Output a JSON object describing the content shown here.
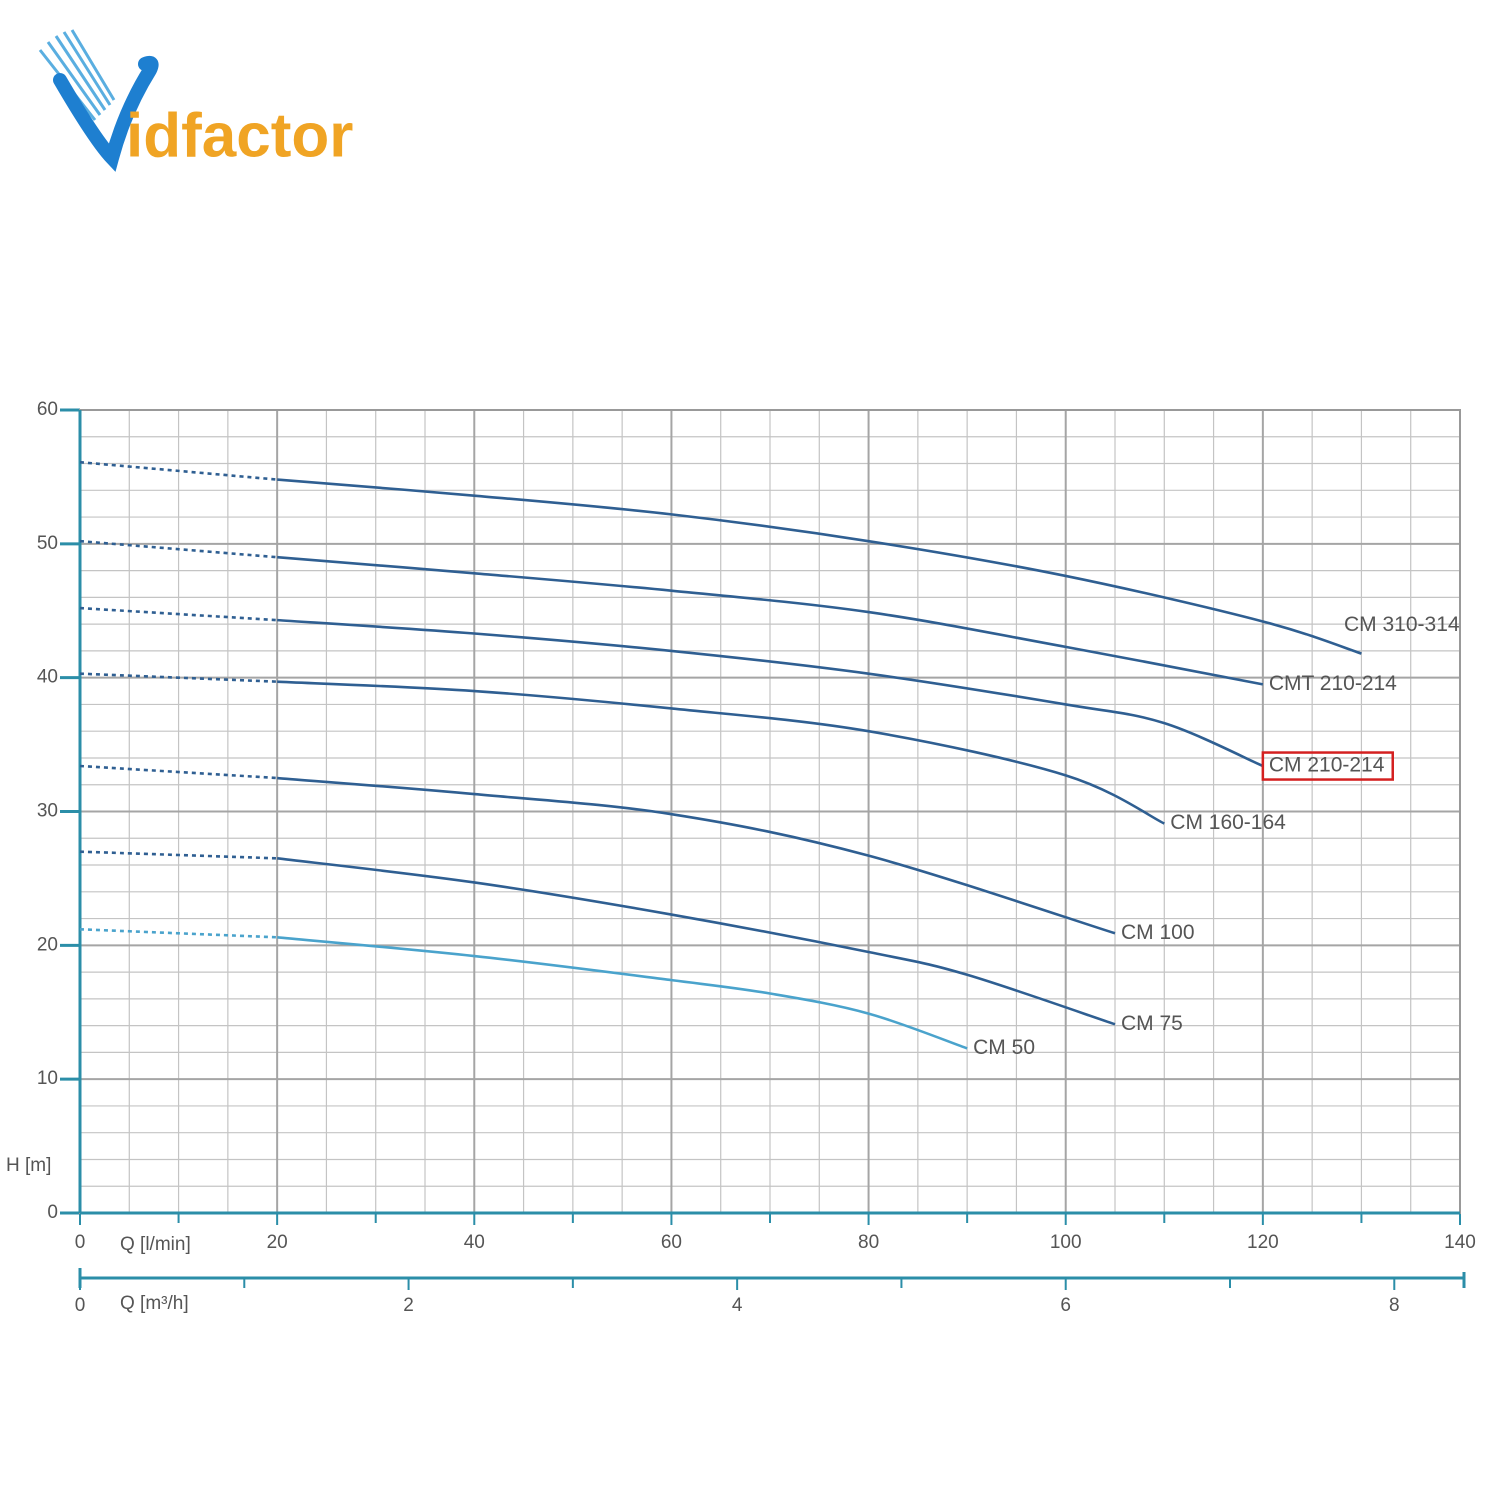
{
  "logo": {
    "initial": "V",
    "rest": "idfactor"
  },
  "chart_data": {
    "type": "line",
    "xlabel": "Q [l/min]",
    "x2label": "Q [m³/h]",
    "ylabel": "H [m]",
    "xlim": [
      0,
      140
    ],
    "xticks": [
      0,
      20,
      40,
      60,
      80,
      100,
      120,
      140
    ],
    "xminor_ticks": [
      10,
      30,
      50,
      70,
      90,
      110,
      130
    ],
    "x2lim": [
      0,
      8.4
    ],
    "x2ticks": [
      0,
      2,
      4,
      6,
      8
    ],
    "x2minor_ticks": [
      1,
      3,
      5,
      7
    ],
    "ylim": [
      0,
      60
    ],
    "yticks": [
      0,
      10,
      20,
      30,
      40,
      50,
      60
    ],
    "grid": true,
    "xgrid_step": 5,
    "ygrid_step": 2,
    "dashed_x_range": [
      0,
      20
    ],
    "series": [
      {
        "name": "CM 310-314",
        "color": "#2f5f92",
        "x": [
          0,
          20,
          40,
          60,
          80,
          100,
          120,
          130
        ],
        "values": [
          56.1,
          54.8,
          53.6,
          52.2,
          50.2,
          47.6,
          44.2,
          41.8
        ]
      },
      {
        "name": "CMT 210-214",
        "color": "#2f5f92",
        "x": [
          0,
          20,
          40,
          60,
          80,
          100,
          120
        ],
        "values": [
          50.2,
          49.0,
          47.8,
          46.5,
          44.9,
          42.3,
          39.5
        ]
      },
      {
        "name": "CM 210-214",
        "color": "#2f5f92",
        "x": [
          0,
          20,
          40,
          60,
          80,
          100,
          110,
          120
        ],
        "values": [
          45.2,
          44.3,
          43.3,
          42.0,
          40.3,
          38.0,
          36.6,
          33.4
        ],
        "highlighted": true
      },
      {
        "name": "CM 160-164",
        "color": "#2f5f92",
        "x": [
          0,
          20,
          40,
          60,
          80,
          100,
          110
        ],
        "values": [
          40.3,
          39.7,
          39.0,
          37.7,
          36.0,
          32.7,
          29.1
        ]
      },
      {
        "name": "CM 100",
        "color": "#2f5f92",
        "x": [
          0,
          20,
          40,
          60,
          80,
          105
        ],
        "values": [
          33.4,
          32.5,
          31.3,
          29.8,
          26.7,
          20.9
        ]
      },
      {
        "name": "CM 75",
        "color": "#2f5f92",
        "x": [
          0,
          20,
          40,
          60,
          80,
          90,
          105
        ],
        "values": [
          27.0,
          26.5,
          24.7,
          22.3,
          19.5,
          17.8,
          14.1
        ]
      },
      {
        "name": "CM 50",
        "color": "#4aa3cc",
        "x": [
          0,
          20,
          40,
          60,
          70,
          80,
          90
        ],
        "values": [
          21.2,
          20.6,
          19.2,
          17.4,
          16.4,
          14.9,
          12.3
        ]
      }
    ]
  }
}
